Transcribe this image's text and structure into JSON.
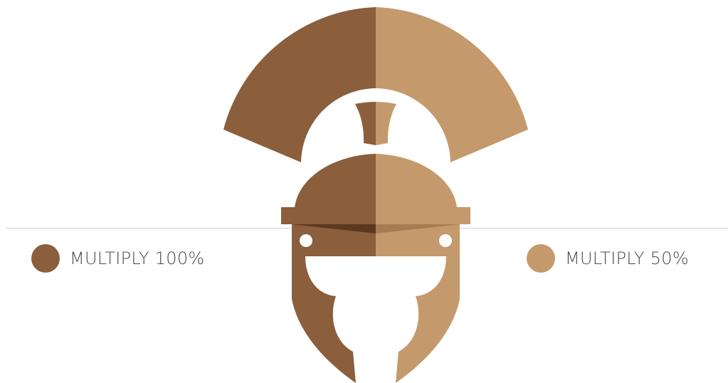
{
  "colors": {
    "dark": "#8b5e3c",
    "light": "#c49a6c",
    "visor_shadow": "#5a3920",
    "visor_light": "#a87c52",
    "divider": "#cfcfcf",
    "text": "#4a4a4a"
  },
  "legend": {
    "left": {
      "label": "MULTIPLY 100%"
    },
    "right": {
      "label": "MULTIPLY 50%"
    }
  },
  "icon": "roman-helmet-icon"
}
